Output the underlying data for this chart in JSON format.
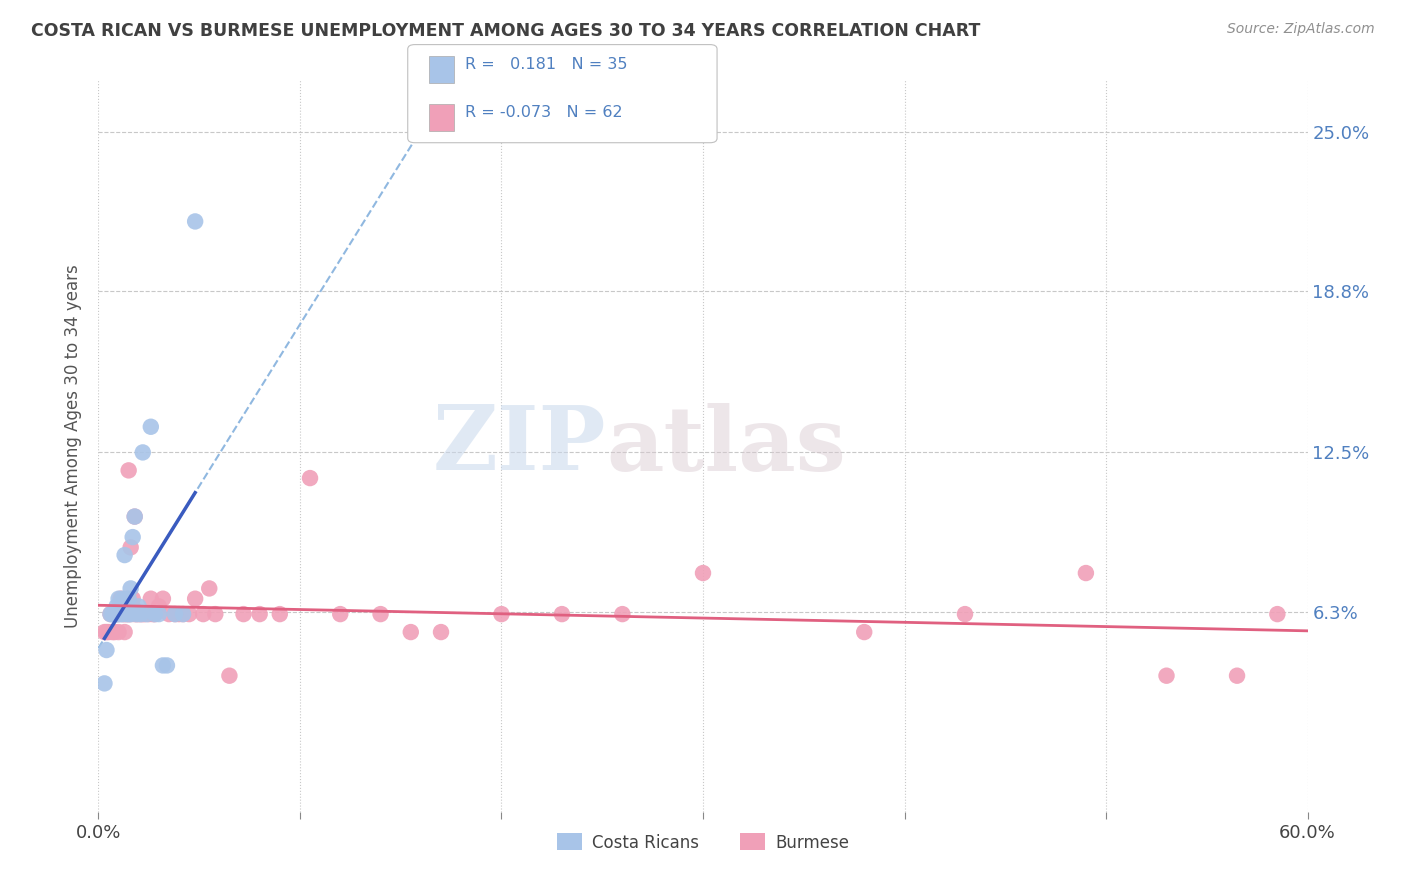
{
  "title": "COSTA RICAN VS BURMESE UNEMPLOYMENT AMONG AGES 30 TO 34 YEARS CORRELATION CHART",
  "source": "Source: ZipAtlas.com",
  "ylabel": "Unemployment Among Ages 30 to 34 years",
  "xlim": [
    0.0,
    0.6
  ],
  "ylim": [
    -0.015,
    0.27
  ],
  "xtick_positions": [
    0.0,
    0.1,
    0.2,
    0.3,
    0.4,
    0.5,
    0.6
  ],
  "xticklabels": [
    "0.0%",
    "",
    "",
    "",
    "",
    "",
    "60.0%"
  ],
  "ytick_positions": [
    0.063,
    0.125,
    0.188,
    0.25
  ],
  "ytick_labels": [
    "6.3%",
    "12.5%",
    "18.8%",
    "25.0%"
  ],
  "watermark_zip": "ZIP",
  "watermark_atlas": "atlas",
  "costa_rican_color": "#a8c4e8",
  "burmese_color": "#f0a0b8",
  "trend_cr_solid_color": "#3a5bbf",
  "trend_bur_solid_color": "#e06080",
  "trend_cr_dashed_color": "#90b8e0",
  "grid_color": "#c8c8c8",
  "title_color": "#404040",
  "source_color": "#909090",
  "tick_color": "#5080c0",
  "bottom_label_color": "#404040",
  "legend_border_color": "#c0c0c0",
  "legend_r1_color": "#5080c0",
  "legend_r2_color": "#5080c0",
  "costa_rican_x": [
    0.003,
    0.004,
    0.006,
    0.007,
    0.008,
    0.009,
    0.009,
    0.01,
    0.01,
    0.011,
    0.012,
    0.012,
    0.013,
    0.013,
    0.014,
    0.014,
    0.015,
    0.015,
    0.016,
    0.016,
    0.017,
    0.018,
    0.019,
    0.02,
    0.021,
    0.022,
    0.024,
    0.026,
    0.028,
    0.03,
    0.032,
    0.034,
    0.038,
    0.042,
    0.048
  ],
  "costa_rican_y": [
    0.035,
    0.048,
    0.062,
    0.062,
    0.062,
    0.062,
    0.065,
    0.062,
    0.068,
    0.062,
    0.062,
    0.068,
    0.065,
    0.085,
    0.062,
    0.065,
    0.062,
    0.068,
    0.062,
    0.072,
    0.092,
    0.1,
    0.062,
    0.065,
    0.062,
    0.125,
    0.062,
    0.135,
    0.062,
    0.062,
    0.042,
    0.042,
    0.062,
    0.062,
    0.215
  ],
  "burmese_x": [
    0.003,
    0.004,
    0.005,
    0.006,
    0.007,
    0.008,
    0.009,
    0.01,
    0.01,
    0.011,
    0.012,
    0.013,
    0.013,
    0.014,
    0.014,
    0.015,
    0.015,
    0.016,
    0.016,
    0.017,
    0.017,
    0.018,
    0.018,
    0.019,
    0.02,
    0.021,
    0.022,
    0.023,
    0.025,
    0.026,
    0.027,
    0.028,
    0.03,
    0.032,
    0.035,
    0.038,
    0.04,
    0.042,
    0.045,
    0.048,
    0.052,
    0.055,
    0.058,
    0.065,
    0.072,
    0.08,
    0.09,
    0.105,
    0.12,
    0.14,
    0.155,
    0.17,
    0.2,
    0.23,
    0.26,
    0.3,
    0.38,
    0.43,
    0.49,
    0.53,
    0.565,
    0.585
  ],
  "burmese_y": [
    0.055,
    0.055,
    0.055,
    0.062,
    0.055,
    0.055,
    0.062,
    0.055,
    0.062,
    0.068,
    0.062,
    0.055,
    0.062,
    0.062,
    0.068,
    0.062,
    0.118,
    0.062,
    0.088,
    0.065,
    0.068,
    0.062,
    0.1,
    0.062,
    0.062,
    0.062,
    0.062,
    0.062,
    0.062,
    0.068,
    0.062,
    0.062,
    0.065,
    0.068,
    0.062,
    0.062,
    0.062,
    0.062,
    0.062,
    0.068,
    0.062,
    0.072,
    0.062,
    0.038,
    0.062,
    0.062,
    0.062,
    0.115,
    0.062,
    0.062,
    0.055,
    0.055,
    0.062,
    0.062,
    0.062,
    0.078,
    0.055,
    0.062,
    0.078,
    0.038,
    0.038,
    0.062
  ]
}
